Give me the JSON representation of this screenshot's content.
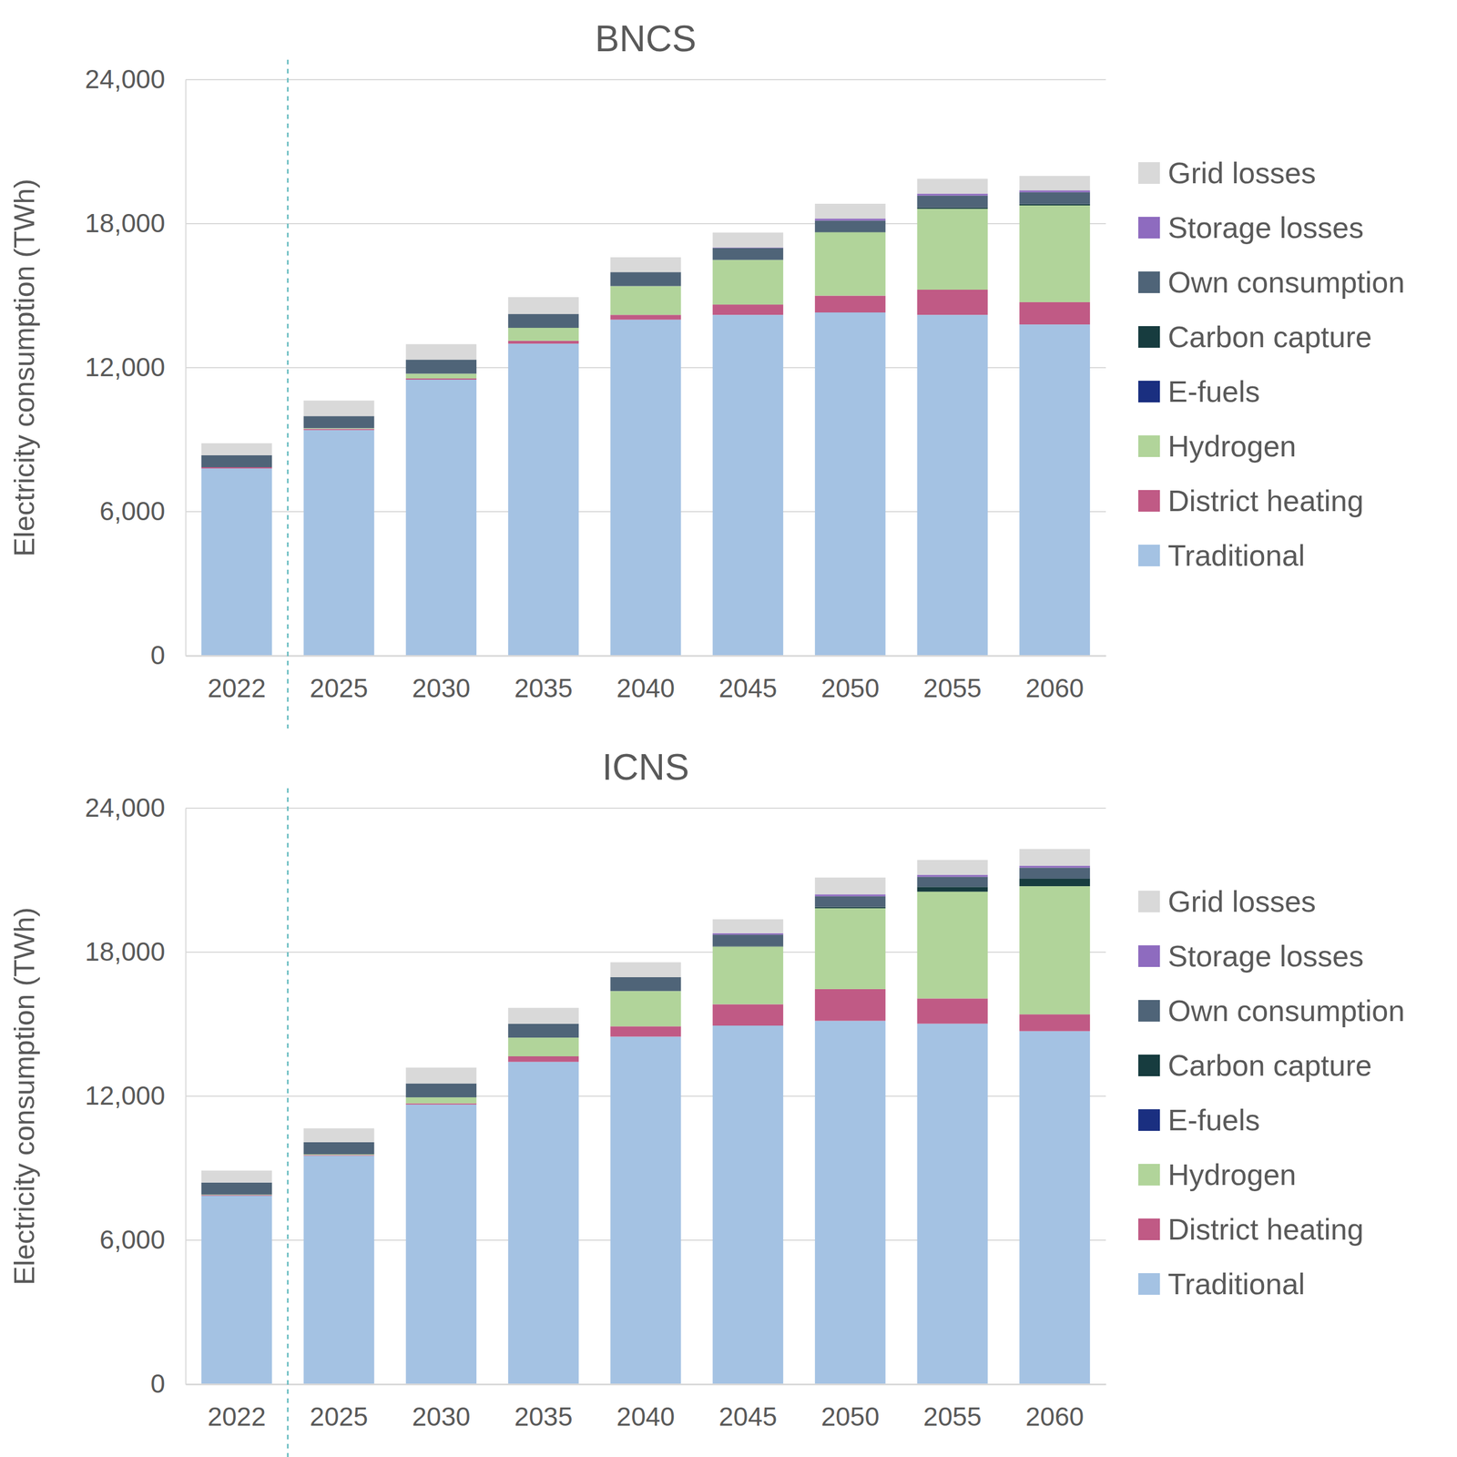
{
  "chart_data": [
    {
      "type": "bar",
      "title": "BNCS",
      "y_label": "Electricity consumption (TWh)",
      "categories": [
        "2022",
        "2025",
        "2030",
        "2035",
        "2040",
        "2045",
        "2050",
        "2055",
        "2060"
      ],
      "ylim": [
        0,
        24000
      ],
      "yticks": [
        0,
        {
          "value": 6000,
          "label": "6,000"
        },
        {
          "value": 12000,
          "label": "12,000"
        },
        {
          "value": 18000,
          "label": "18,000"
        },
        {
          "value": 24000,
          "label": "24,000"
        }
      ],
      "grid": true,
      "stacked": true,
      "legend": "right",
      "series": [
        {
          "name": "Traditional",
          "color": "#a4c2e3",
          "values": [
            7800,
            9400,
            11500,
            13000,
            14000,
            14200,
            14300,
            14200,
            13800
          ]
        },
        {
          "name": "District heating",
          "color": "#c05a85",
          "values": [
            50,
            50,
            50,
            120,
            200,
            430,
            700,
            1050,
            930
          ]
        },
        {
          "name": "Hydrogen",
          "color": "#b1d49a",
          "values": [
            0,
            30,
            200,
            540,
            1200,
            1860,
            2640,
            3370,
            4030
          ]
        },
        {
          "name": "E-fuels",
          "color": "#1a2f80",
          "values": [
            0,
            0,
            0,
            0,
            0,
            0,
            0,
            0,
            0
          ]
        },
        {
          "name": "Carbon capture",
          "color": "#173c3f",
          "values": [
            0,
            0,
            0,
            0,
            0,
            0,
            20,
            50,
            50
          ]
        },
        {
          "name": "Own consumption",
          "color": "#4f6478",
          "values": [
            500,
            500,
            580,
            580,
            580,
            500,
            470,
            500,
            500
          ]
        },
        {
          "name": "Storage losses",
          "color": "#8e6bbf",
          "values": [
            0,
            0,
            0,
            0,
            0,
            20,
            80,
            80,
            80
          ]
        },
        {
          "name": "Grid losses",
          "color": "#d9d9d9",
          "values": [
            500,
            650,
            650,
            700,
            620,
            620,
            620,
            620,
            600
          ]
        }
      ]
    },
    {
      "type": "bar",
      "title": "ICNS",
      "y_label": "Electricity consumption (TWh)",
      "categories": [
        "2022",
        "2025",
        "2030",
        "2035",
        "2040",
        "2045",
        "2050",
        "2055",
        "2060"
      ],
      "ylim": [
        0,
        24000
      ],
      "yticks": [
        0,
        {
          "value": 6000,
          "label": "6,000"
        },
        {
          "value": 12000,
          "label": "12,000"
        },
        {
          "value": 18000,
          "label": "18,000"
        },
        {
          "value": 24000,
          "label": "24,000"
        }
      ],
      "grid": true,
      "stacked": true,
      "legend": "right",
      "series": [
        {
          "name": "Traditional",
          "color": "#a4c2e3",
          "values": [
            7850,
            9520,
            11650,
            13430,
            14480,
            14940,
            15140,
            15020,
            14710
          ]
        },
        {
          "name": "District heating",
          "color": "#c05a85",
          "values": [
            30,
            30,
            50,
            230,
            430,
            890,
            1320,
            1050,
            700
          ]
        },
        {
          "name": "Hydrogen",
          "color": "#b1d49a",
          "values": [
            20,
            30,
            250,
            780,
            1470,
            2400,
            3370,
            4450,
            5340
          ]
        },
        {
          "name": "E-fuels",
          "color": "#1a2f80",
          "values": [
            0,
            0,
            0,
            0,
            0,
            0,
            0,
            0,
            0
          ]
        },
        {
          "name": "Carbon capture",
          "color": "#173c3f",
          "values": [
            0,
            0,
            0,
            0,
            0,
            20,
            50,
            200,
            310
          ]
        },
        {
          "name": "Own consumption",
          "color": "#4f6478",
          "values": [
            500,
            500,
            580,
            580,
            580,
            480,
            450,
            420,
            460
          ]
        },
        {
          "name": "Storage losses",
          "color": "#8e6bbf",
          "values": [
            0,
            0,
            0,
            0,
            0,
            60,
            80,
            80,
            80
          ]
        },
        {
          "name": "Grid losses",
          "color": "#d9d9d9",
          "values": [
            500,
            580,
            660,
            660,
            620,
            580,
            700,
            620,
            700
          ]
        }
      ]
    }
  ]
}
